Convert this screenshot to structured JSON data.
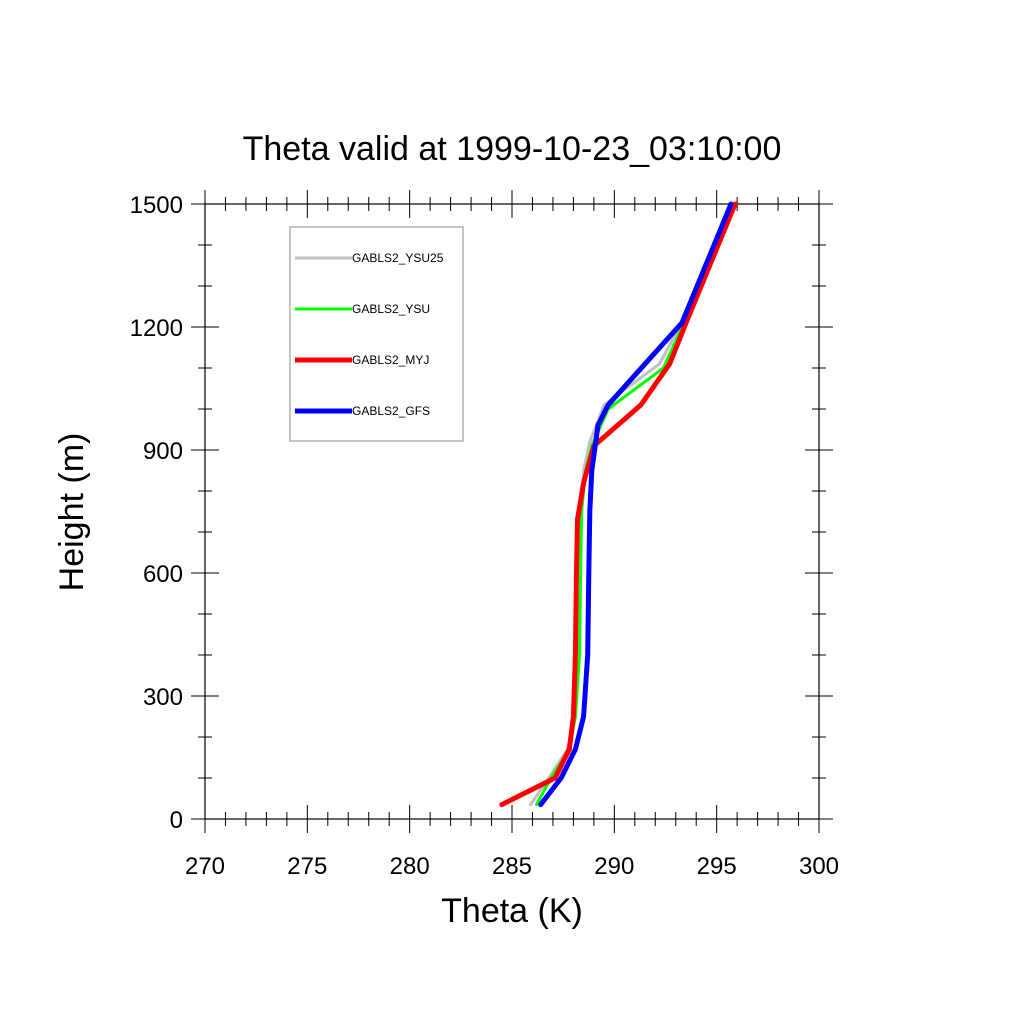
{
  "chart_data": {
    "type": "line",
    "title": "Theta valid at 1999-10-23_03:10:00",
    "xlabel": "Theta (K)",
    "ylabel": "Height (m)",
    "xlim": [
      270,
      300
    ],
    "ylim": [
      0,
      1500
    ],
    "xticks": [
      "270",
      "275",
      "280",
      "285",
      "290",
      "295",
      "300"
    ],
    "yticks": [
      "0",
      "300",
      "600",
      "900",
      "1200",
      "1500"
    ],
    "grid": false,
    "legend_position": "top-left",
    "series": [
      {
        "name": "GABLS2_YSU25",
        "color": "#c0c0c0",
        "x": [
          285.9,
          286.8,
          287.7,
          288.1,
          288.3,
          288.35,
          288.4,
          288.5,
          288.8,
          289.5,
          292.2,
          293.3,
          295.9
        ],
        "y": [
          35,
          100,
          170,
          250,
          400,
          600,
          750,
          850,
          920,
          1010,
          1110,
          1210,
          1500
        ]
      },
      {
        "name": "GABLS2_YSU",
        "color": "#00ff00",
        "x": [
          286.2,
          286.9,
          287.8,
          288.1,
          288.3,
          288.35,
          288.4,
          288.6,
          288.9,
          289.7,
          292.4,
          293.4,
          295.8
        ],
        "y": [
          35,
          100,
          170,
          250,
          400,
          600,
          750,
          850,
          910,
          1000,
          1100,
          1210,
          1500
        ]
      },
      {
        "name": "GABLS2_MYJ",
        "color": "#ff0000",
        "x": [
          284.5,
          287.1,
          287.8,
          288.0,
          288.1,
          288.15,
          288.2,
          288.5,
          289.0,
          291.3,
          292.7,
          293.5,
          295.9
        ],
        "y": [
          35,
          100,
          170,
          250,
          400,
          600,
          730,
          820,
          910,
          1010,
          1110,
          1210,
          1500
        ]
      },
      {
        "name": "GABLS2_GFS",
        "color": "#0000ff",
        "x": [
          286.4,
          287.4,
          288.1,
          288.5,
          288.7,
          288.75,
          288.8,
          288.9,
          289.2,
          289.7,
          291.5,
          293.3,
          295.7
        ],
        "y": [
          35,
          100,
          170,
          250,
          400,
          600,
          750,
          850,
          960,
          1010,
          1110,
          1210,
          1500
        ]
      }
    ]
  }
}
